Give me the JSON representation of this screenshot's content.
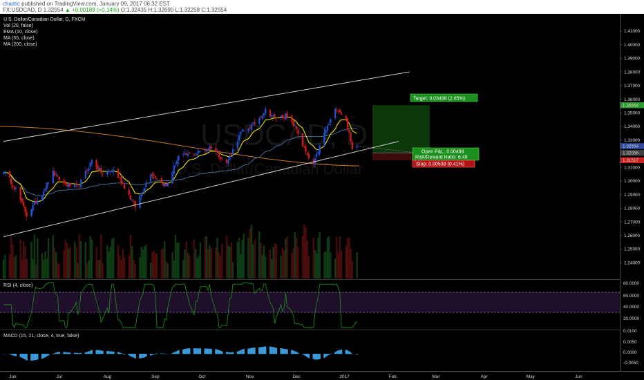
{
  "header": {
    "user": "chastic",
    "published": " published on TradingView.com, January 09, 2017 06:32 EST",
    "symbol": "FX:USDCAD, D",
    "last": "1.32554",
    "change_arrow": "▲",
    "change": "+0.00189 (+0.14%)",
    "ohlc": "O:1.32435  H:1.32690  L:1.32258  C:1.32554"
  },
  "legend": {
    "title": "U.S. Dollar/Canadian Dollar, D, FXCM",
    "items": [
      "Vol (20, false)",
      "EMA (10, close)",
      "MA (55, close)",
      "MA (200, close)"
    ]
  },
  "watermark": {
    "symbol": "USDCAD, D",
    "name": "U.S. Dollar/Canadian Dollar"
  },
  "price_axis": {
    "ticks": [
      "1.41000",
      "1.40000",
      "1.39000",
      "1.38000",
      "1.37000",
      "1.36000",
      "1.35000",
      "1.34000",
      "1.33000",
      "1.32000",
      "1.31000",
      "1.30000",
      "1.29000",
      "1.28000",
      "1.27000",
      "1.26000",
      "1.25000",
      "1.24000"
    ],
    "markers": [
      {
        "label": "1.35554",
        "color": "#2e9d2e"
      },
      {
        "label": "1.32554",
        "color": "#2f4a9e"
      },
      {
        "label": "1.32056",
        "color": "#404040"
      },
      {
        "label": "1.31517",
        "color": "#cc2222"
      }
    ]
  },
  "position": {
    "target": "Target: 0.03498 (2.65%)",
    "open_pl": "Open P&L: 0.00498",
    "rr": "Risk/Reward Ratio: 6.49",
    "stop": "Stop: 0.00539 (0.41%)"
  },
  "rsi": {
    "title": "RSI (4, close)",
    "ticks": [
      "80.0000",
      "60.0000",
      "40.0000",
      "20.0000"
    ]
  },
  "macd": {
    "title": "MACD (15, 21, close, 4, true, false)",
    "ticks": [
      "0.0100",
      "0.0050",
      "0.0000",
      "-0.0050"
    ]
  },
  "time_axis": [
    "Jun",
    "Jul",
    "Aug",
    "Sep",
    "Oct",
    "Nov",
    "Dec",
    "2017",
    "Feb",
    "Mar",
    "Apr",
    "May",
    "Jun"
  ],
  "colors": {
    "up": "#1f4fd1",
    "down": "#d01a1a",
    "ema": "#f2e600",
    "ma55": "#4c7aa8",
    "ma200": "#c77a1e",
    "channel": "#cfcfcf",
    "rsi": "#1c8a1c",
    "rsi_band": "#1f0f2a",
    "macd": "#3d9bdc",
    "target": "#1b8f1b",
    "stop": "#b51414"
  },
  "chart_data": {
    "type": "candlestick",
    "title": "U.S. Dollar/Canadian Dollar, D, FXCM",
    "x_range": [
      "2016-05-26",
      "2017-06-20"
    ],
    "ylim": [
      1.235,
      1.415
    ],
    "close_anchors": [
      {
        "date": "2016-05-26",
        "close": 1.3075
      },
      {
        "date": "2016-06-03",
        "close": 1.294
      },
      {
        "date": "2016-06-10",
        "close": 1.275
      },
      {
        "date": "2016-06-20",
        "close": 1.291
      },
      {
        "date": "2016-06-27",
        "close": 1.306
      },
      {
        "date": "2016-07-04",
        "close": 1.298
      },
      {
        "date": "2016-07-13",
        "close": 1.295
      },
      {
        "date": "2016-07-22",
        "close": 1.315
      },
      {
        "date": "2016-07-29",
        "close": 1.305
      },
      {
        "date": "2016-08-05",
        "close": 1.308
      },
      {
        "date": "2016-08-12",
        "close": 1.296
      },
      {
        "date": "2016-08-19",
        "close": 1.281
      },
      {
        "date": "2016-08-29",
        "close": 1.306
      },
      {
        "date": "2016-09-08",
        "close": 1.296
      },
      {
        "date": "2016-09-16",
        "close": 1.318
      },
      {
        "date": "2016-09-27",
        "close": 1.32
      },
      {
        "date": "2016-10-07",
        "close": 1.325
      },
      {
        "date": "2016-10-17",
        "close": 1.313
      },
      {
        "date": "2016-10-26",
        "close": 1.335
      },
      {
        "date": "2016-11-04",
        "close": 1.342
      },
      {
        "date": "2016-11-11",
        "close": 1.352
      },
      {
        "date": "2016-11-17",
        "close": 1.346
      },
      {
        "date": "2016-11-24",
        "close": 1.348
      },
      {
        "date": "2016-12-01",
        "close": 1.338
      },
      {
        "date": "2016-12-08",
        "close": 1.318
      },
      {
        "date": "2016-12-12",
        "close": 1.312
      },
      {
        "date": "2016-12-19",
        "close": 1.335
      },
      {
        "date": "2016-12-27",
        "close": 1.354
      },
      {
        "date": "2017-01-02",
        "close": 1.345
      },
      {
        "date": "2017-01-06",
        "close": 1.323
      },
      {
        "date": "2017-01-09",
        "close": 1.32554
      }
    ],
    "last": {
      "open": 1.32435,
      "high": 1.3269,
      "low": 1.32258,
      "close": 1.32554
    },
    "channel": {
      "upper": [
        {
          "date": "2016-05-26",
          "price": 1.329
        },
        {
          "date": "2017-02-12",
          "price": 1.38
        }
      ],
      "lower": [
        {
          "date": "2016-05-26",
          "price": 1.259
        },
        {
          "date": "2017-02-05",
          "price": 1.329
        }
      ]
    },
    "position": {
      "entry": 1.32056,
      "target": 1.35554,
      "stop": 1.31517,
      "from": "2017-01-19",
      "to": "2017-02-25"
    },
    "rsi_levels": [
      30,
      70
    ],
    "legend_placement": "top-left"
  }
}
